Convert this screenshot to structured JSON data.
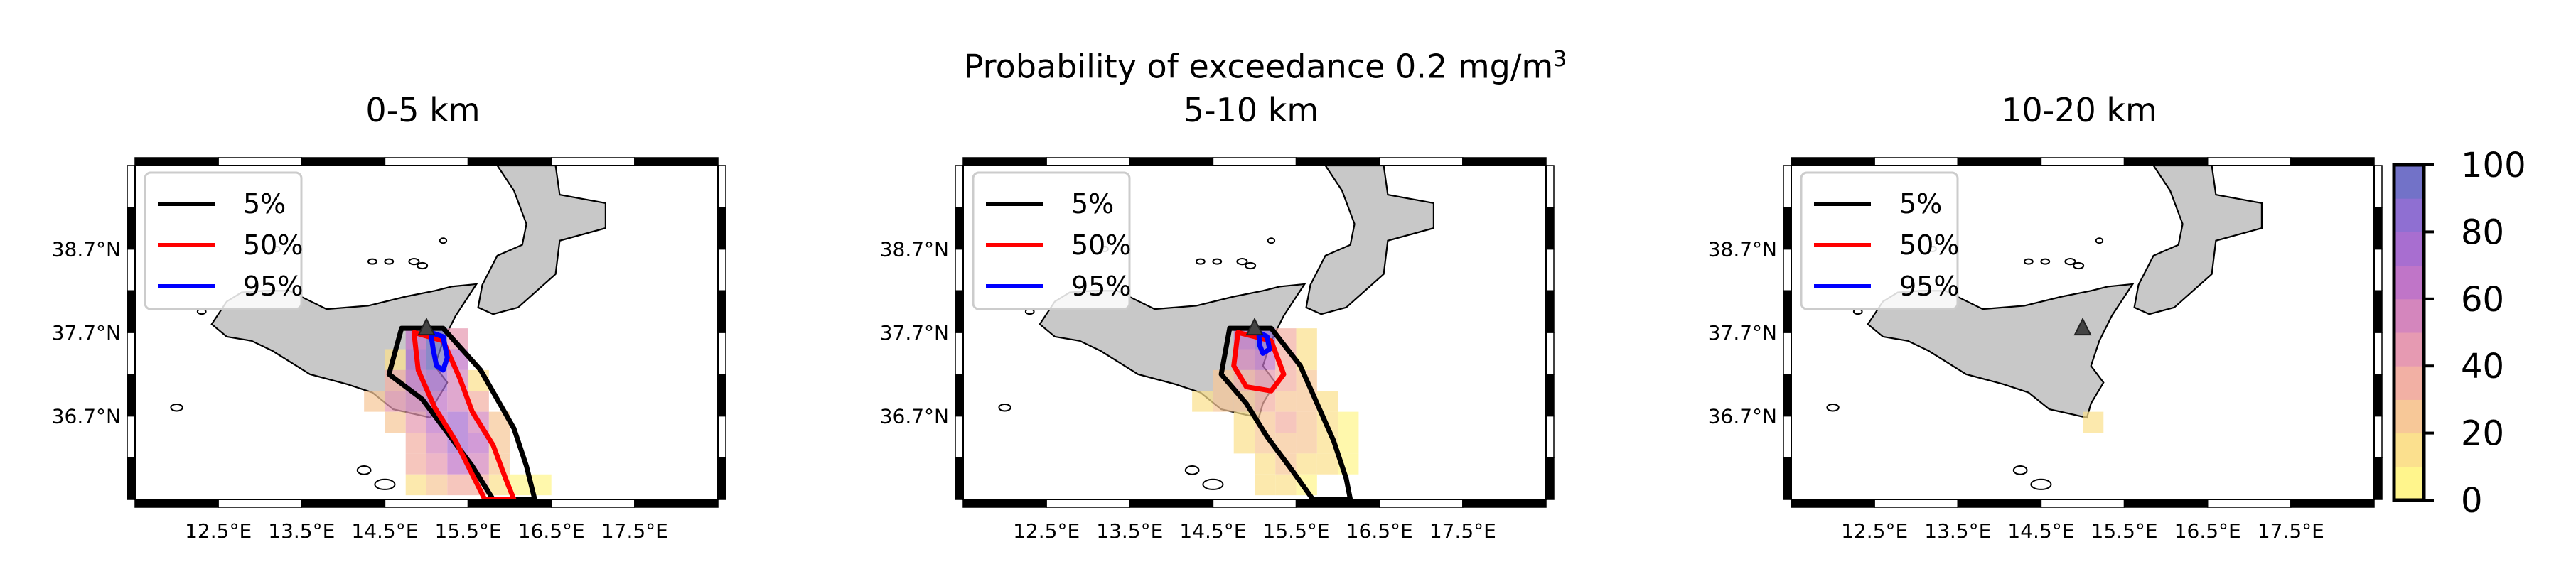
{
  "figure": {
    "title_prefix": "Probability of exceedance 0.2 mg/m",
    "title_sup": "3"
  },
  "colors": {
    "land": "#c8c8c8",
    "contour_5": "#000000",
    "contour_50": "#ff0000",
    "contour_95": "#0000ff",
    "colormap": [
      "#fff58c",
      "#fbe08e",
      "#f7c898",
      "#f2b0a4",
      "#e69ab2",
      "#d486bd",
      "#c075c8",
      "#a86ed0",
      "#8f6fd2",
      "#7272c8"
    ]
  },
  "chart_data": [
    {
      "type": "heatmap",
      "title": "0-5 km",
      "x_ticks": [
        "12.5°E",
        "13.5°E",
        "14.5°E",
        "15.5°E",
        "16.5°E",
        "17.5°E"
      ],
      "y_ticks": [
        "38.7°N",
        "37.7°N",
        "36.7°N"
      ],
      "xlim": [
        11.5,
        18.5
      ],
      "ylim": [
        35.7,
        39.7
      ],
      "legend": {
        "placement": "top-left",
        "entries": [
          "5%",
          "50%",
          "95%"
        ]
      },
      "vent": {
        "lon": 15.0,
        "lat": 37.75
      },
      "cell_size_deg": 0.25,
      "cells": [
        [
          14.875,
          37.625,
          60
        ],
        [
          15.125,
          37.625,
          95
        ],
        [
          15.375,
          37.625,
          45
        ],
        [
          14.875,
          37.375,
          70
        ],
        [
          15.125,
          37.375,
          90
        ],
        [
          15.375,
          37.375,
          65
        ],
        [
          14.625,
          37.375,
          15
        ],
        [
          14.625,
          37.125,
          35
        ],
        [
          14.875,
          37.125,
          65
        ],
        [
          15.125,
          37.125,
          75
        ],
        [
          15.375,
          37.125,
          55
        ],
        [
          15.625,
          37.125,
          15
        ],
        [
          14.375,
          36.875,
          20
        ],
        [
          14.625,
          36.875,
          40
        ],
        [
          14.875,
          36.875,
          55
        ],
        [
          15.125,
          36.875,
          60
        ],
        [
          15.375,
          36.875,
          50
        ],
        [
          15.625,
          36.875,
          30
        ],
        [
          14.625,
          36.625,
          25
        ],
        [
          14.875,
          36.625,
          45
        ],
        [
          15.125,
          36.625,
          60
        ],
        [
          15.375,
          36.625,
          70
        ],
        [
          15.625,
          36.625,
          50
        ],
        [
          15.875,
          36.625,
          20
        ],
        [
          14.875,
          36.375,
          35
        ],
        [
          15.125,
          36.375,
          55
        ],
        [
          15.375,
          36.375,
          75
        ],
        [
          15.625,
          36.375,
          60
        ],
        [
          15.875,
          36.375,
          25
        ],
        [
          14.875,
          36.125,
          30
        ],
        [
          15.125,
          36.125,
          45
        ],
        [
          15.375,
          36.125,
          60
        ],
        [
          15.625,
          36.125,
          55
        ],
        [
          15.875,
          36.125,
          25
        ],
        [
          14.875,
          35.875,
          10
        ],
        [
          15.125,
          35.875,
          20
        ],
        [
          15.375,
          35.875,
          35
        ],
        [
          15.625,
          35.875,
          30
        ],
        [
          15.875,
          35.875,
          15
        ],
        [
          16.125,
          35.875,
          5
        ],
        [
          16.375,
          35.875,
          5
        ]
      ],
      "contours": {
        "5%": [
          [
            14.7,
            37.75
          ],
          [
            15.2,
            37.75
          ],
          [
            15.65,
            37.25
          ],
          [
            15.85,
            36.9
          ],
          [
            16.05,
            36.55
          ],
          [
            16.2,
            36.1
          ],
          [
            16.3,
            35.7
          ],
          [
            15.8,
            35.7
          ],
          [
            15.55,
            36.1
          ],
          [
            15.25,
            36.5
          ],
          [
            14.95,
            36.9
          ],
          [
            14.55,
            37.2
          ]
        ],
        "50%": [
          [
            14.85,
            37.7
          ],
          [
            15.2,
            37.6
          ],
          [
            15.4,
            37.15
          ],
          [
            15.55,
            36.75
          ],
          [
            15.8,
            36.35
          ],
          [
            15.95,
            35.95
          ],
          [
            16.05,
            35.7
          ],
          [
            15.7,
            35.7
          ],
          [
            15.55,
            36.0
          ],
          [
            15.35,
            36.4
          ],
          [
            15.1,
            36.8
          ],
          [
            14.9,
            37.25
          ]
        ],
        "95%": [
          [
            15.05,
            37.7
          ],
          [
            15.2,
            37.65
          ],
          [
            15.25,
            37.4
          ],
          [
            15.2,
            37.25
          ],
          [
            15.12,
            37.3
          ],
          [
            15.08,
            37.5
          ]
        ]
      }
    },
    {
      "type": "heatmap",
      "title": "5-10 km",
      "x_ticks": [
        "12.5°E",
        "13.5°E",
        "14.5°E",
        "15.5°E",
        "16.5°E",
        "17.5°E"
      ],
      "y_ticks": [
        "38.7°N",
        "37.7°N",
        "36.7°N"
      ],
      "xlim": [
        11.5,
        18.5
      ],
      "ylim": [
        35.7,
        39.7
      ],
      "legend": {
        "placement": "top-left",
        "entries": [
          "5%",
          "50%",
          "95%"
        ]
      },
      "vent": {
        "lon": 15.0,
        "lat": 37.75
      },
      "cell_size_deg": 0.25,
      "cells": [
        [
          14.875,
          37.625,
          60
        ],
        [
          15.125,
          37.625,
          80
        ],
        [
          15.375,
          37.625,
          30
        ],
        [
          15.625,
          37.625,
          10
        ],
        [
          14.875,
          37.375,
          55
        ],
        [
          15.125,
          37.375,
          60
        ],
        [
          15.375,
          37.375,
          35
        ],
        [
          15.625,
          37.375,
          15
        ],
        [
          14.625,
          37.125,
          25
        ],
        [
          14.875,
          37.125,
          35
        ],
        [
          15.125,
          37.125,
          40
        ],
        [
          15.375,
          37.125,
          30
        ],
        [
          15.625,
          37.125,
          20
        ],
        [
          14.375,
          36.875,
          15
        ],
        [
          14.625,
          36.875,
          20
        ],
        [
          14.875,
          36.875,
          25
        ],
        [
          15.125,
          36.875,
          30
        ],
        [
          15.375,
          36.875,
          25
        ],
        [
          15.625,
          36.875,
          20
        ],
        [
          15.875,
          36.875,
          10
        ],
        [
          14.875,
          36.625,
          15
        ],
        [
          15.125,
          36.625,
          25
        ],
        [
          15.375,
          36.625,
          30
        ],
        [
          15.625,
          36.625,
          25
        ],
        [
          15.875,
          36.625,
          15
        ],
        [
          16.125,
          36.625,
          5
        ],
        [
          14.875,
          36.375,
          15
        ],
        [
          15.125,
          36.375,
          20
        ],
        [
          15.375,
          36.375,
          25
        ],
        [
          15.625,
          36.375,
          20
        ],
        [
          15.875,
          36.375,
          10
        ],
        [
          16.125,
          36.375,
          5
        ],
        [
          15.125,
          36.125,
          15
        ],
        [
          15.375,
          36.125,
          20
        ],
        [
          15.625,
          36.125,
          15
        ],
        [
          15.875,
          36.125,
          10
        ],
        [
          16.125,
          36.125,
          5
        ],
        [
          15.125,
          35.875,
          10
        ],
        [
          15.375,
          35.875,
          10
        ],
        [
          15.625,
          35.875,
          5
        ]
      ],
      "contours": {
        "5%": [
          [
            14.7,
            37.75
          ],
          [
            15.2,
            37.75
          ],
          [
            15.55,
            37.3
          ],
          [
            15.75,
            36.85
          ],
          [
            15.95,
            36.4
          ],
          [
            16.1,
            35.95
          ],
          [
            16.15,
            35.7
          ],
          [
            15.7,
            35.7
          ],
          [
            15.45,
            36.05
          ],
          [
            15.15,
            36.45
          ],
          [
            14.9,
            36.85
          ],
          [
            14.6,
            37.2
          ]
        ],
        "50%": [
          [
            14.8,
            37.7
          ],
          [
            15.2,
            37.6
          ],
          [
            15.35,
            37.2
          ],
          [
            15.2,
            37.0
          ],
          [
            14.9,
            37.05
          ],
          [
            14.75,
            37.3
          ]
        ],
        "95%": [
          [
            15.05,
            37.7
          ],
          [
            15.15,
            37.65
          ],
          [
            15.18,
            37.5
          ],
          [
            15.1,
            37.45
          ],
          [
            15.06,
            37.55
          ]
        ]
      }
    },
    {
      "type": "heatmap",
      "title": "10-20 km",
      "x_ticks": [
        "12.5°E",
        "13.5°E",
        "14.5°E",
        "15.5°E",
        "16.5°E",
        "17.5°E"
      ],
      "y_ticks": [
        "38.7°N",
        "37.7°N",
        "36.7°N"
      ],
      "xlim": [
        11.5,
        18.5
      ],
      "ylim": [
        35.7,
        39.7
      ],
      "legend": {
        "placement": "top-left",
        "entries": [
          "5%",
          "50%",
          "95%"
        ]
      },
      "vent": {
        "lon": 15.0,
        "lat": 37.75
      },
      "cell_size_deg": 0.25,
      "cells": [
        [
          15.125,
          36.625,
          10
        ]
      ],
      "contours": {
        "5%": [],
        "50%": [],
        "95%": []
      }
    }
  ],
  "colorbar": {
    "ticks": [
      "0",
      "20",
      "40",
      "60",
      "80",
      "100"
    ],
    "range": [
      0,
      100
    ],
    "levels": 10
  }
}
